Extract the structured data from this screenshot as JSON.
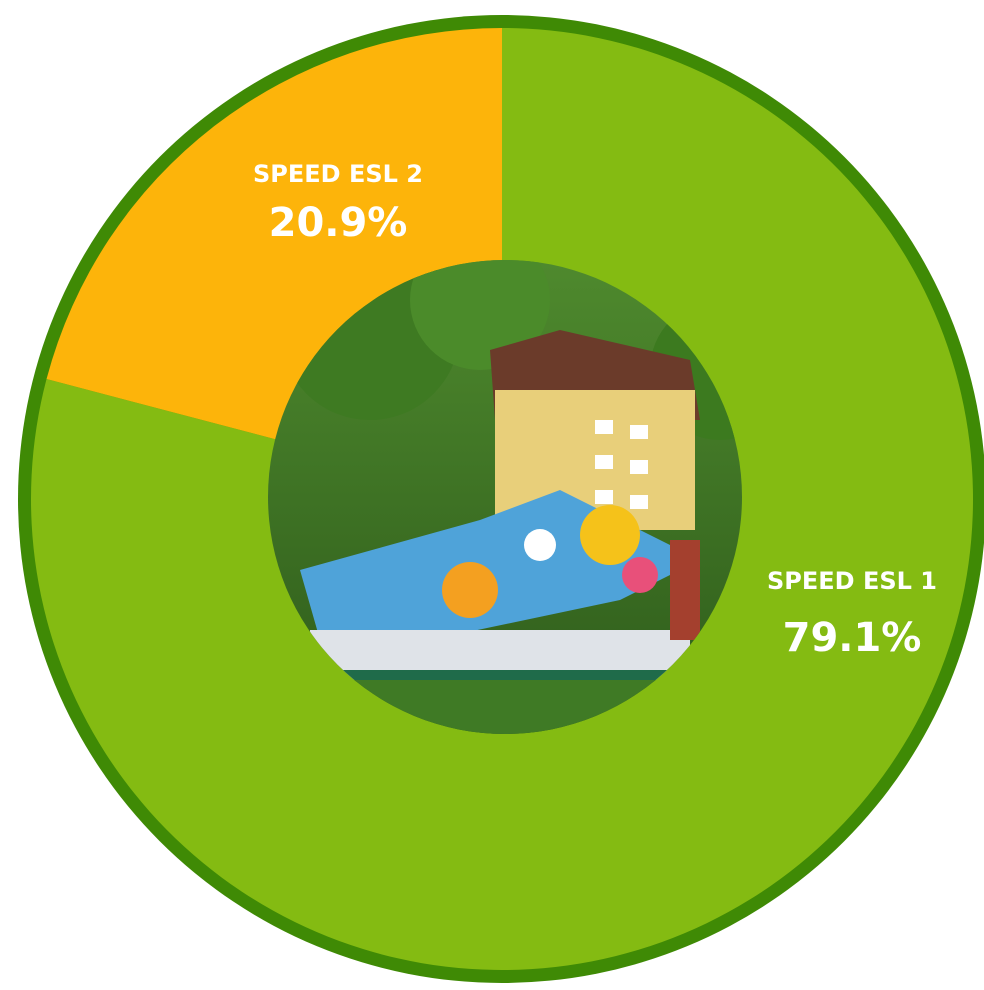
{
  "chart_data": {
    "type": "pie",
    "categories": [
      "SPEED ESL 1",
      "SPEED ESL 2"
    ],
    "values": [
      79.1,
      20.9
    ],
    "value_labels": [
      "79.1%",
      "20.9%"
    ],
    "colors": [
      "#84bb12",
      "#fdb40a"
    ]
  }
}
